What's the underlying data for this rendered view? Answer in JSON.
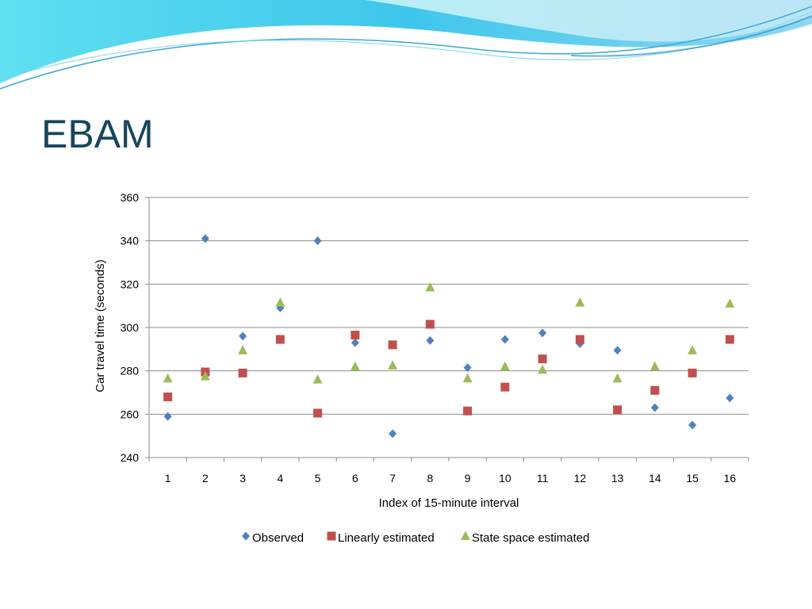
{
  "slide": {
    "title": "EBAM"
  },
  "colors": {
    "observed": "#4f81bd",
    "linear": "#c0504d",
    "statespace": "#9bbb59",
    "title": "#17465e",
    "banner_light": "#c8eef6",
    "banner_mid": "#5fd3ea",
    "banner_dark": "#2aa7d8"
  },
  "chart_data": {
    "type": "scatter",
    "xlabel": "Index of 15-minute interval",
    "ylabel": "Car travel time (seconds)",
    "ylim": [
      240,
      360
    ],
    "yticks": [
      240,
      260,
      280,
      300,
      320,
      340,
      360
    ],
    "categories": [
      "1",
      "2",
      "3",
      "4",
      "5",
      "6",
      "7",
      "8",
      "9",
      "10",
      "11",
      "12",
      "13",
      "14",
      "15",
      "16"
    ],
    "grid": "horizontal",
    "legend_position": "bottom",
    "series": [
      {
        "name": "Observed",
        "marker": "diamond",
        "color": "#4f81bd",
        "values": [
          259,
          341,
          296,
          309,
          340,
          293,
          251,
          294,
          281.5,
          294.5,
          297.5,
          292.5,
          289.5,
          263,
          255,
          267.5
        ]
      },
      {
        "name": "Linearly estimated",
        "marker": "square",
        "color": "#c0504d",
        "values": [
          268,
          279.5,
          279,
          294.5,
          260.5,
          296.5,
          292,
          301.5,
          261.5,
          272.5,
          285.5,
          294.5,
          262,
          271,
          279,
          294.5
        ]
      },
      {
        "name": "State space estimated",
        "marker": "triangle",
        "color": "#9bbb59",
        "values": [
          276.5,
          277.5,
          289.5,
          311.5,
          276,
          282,
          282.5,
          318.5,
          276.5,
          282,
          280.5,
          311.5,
          276.5,
          282,
          289.5,
          311
        ]
      }
    ]
  }
}
